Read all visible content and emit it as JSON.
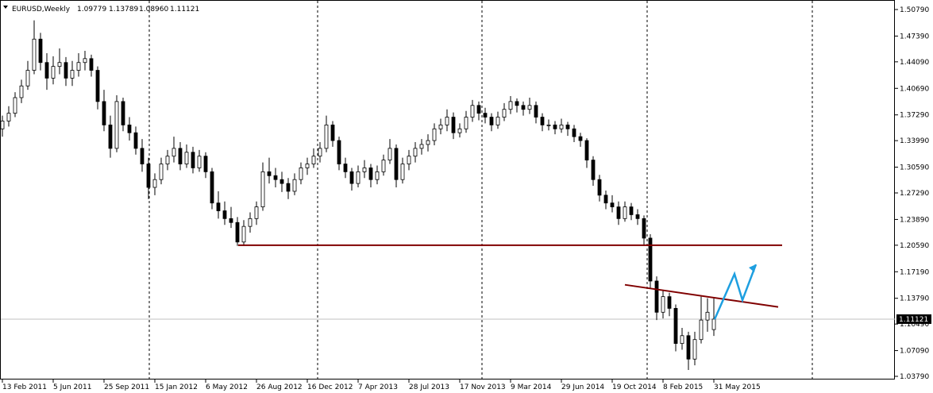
{
  "header": {
    "symbol": "EURUSD,Weekly",
    "ohlc": [
      "1.09779",
      "1.13789",
      "1.08960",
      "1.11121"
    ]
  },
  "chart_data": {
    "type": "candlestick",
    "categories": [
      "13 Feb 2011",
      null,
      null,
      null,
      null,
      null,
      null,
      null,
      "5 Jun 2011",
      null,
      null,
      null,
      null,
      null,
      null,
      null,
      "25 Sep 2011",
      null,
      null,
      null,
      null,
      null,
      null,
      null,
      "15 Jan 2012",
      null,
      null,
      null,
      null,
      null,
      null,
      null,
      "6 May 2012",
      null,
      null,
      null,
      null,
      null,
      null,
      null,
      "26 Aug 2012",
      null,
      null,
      null,
      null,
      null,
      null,
      null,
      "16 Dec 2012",
      null,
      null,
      null,
      null,
      null,
      null,
      null,
      "7 Apr 2013",
      null,
      null,
      null,
      null,
      null,
      null,
      null,
      "28 Jul 2013",
      null,
      null,
      null,
      null,
      null,
      null,
      null,
      "17 Nov 2013",
      null,
      null,
      null,
      null,
      null,
      null,
      null,
      "9 Mar 2014",
      null,
      null,
      null,
      null,
      null,
      null,
      null,
      "29 Jun 2014",
      null,
      null,
      null,
      null,
      null,
      null,
      null,
      "19 Oct 2014",
      null,
      null,
      null,
      null,
      null,
      null,
      null,
      "8 Feb 2015",
      null,
      null,
      null,
      null,
      null,
      null,
      null,
      "31 May 2015"
    ],
    "ohlc": [
      [
        1.355,
        1.372,
        1.345,
        1.365
      ],
      [
        1.365,
        1.384,
        1.358,
        1.375
      ],
      [
        1.375,
        1.402,
        1.37,
        1.395
      ],
      [
        1.395,
        1.418,
        1.388,
        1.41
      ],
      [
        1.41,
        1.442,
        1.405,
        1.43
      ],
      [
        1.43,
        1.494,
        1.425,
        1.47
      ],
      [
        1.47,
        1.478,
        1.43,
        1.44
      ],
      [
        1.44,
        1.452,
        1.405,
        1.42
      ],
      [
        1.42,
        1.448,
        1.412,
        1.435
      ],
      [
        1.435,
        1.458,
        1.425,
        1.44
      ],
      [
        1.44,
        1.447,
        1.41,
        1.42
      ],
      [
        1.42,
        1.442,
        1.41,
        1.43
      ],
      [
        1.43,
        1.452,
        1.422,
        1.44
      ],
      [
        1.44,
        1.455,
        1.43,
        1.445
      ],
      [
        1.445,
        1.45,
        1.422,
        1.43
      ],
      [
        1.43,
        1.435,
        1.38,
        1.39
      ],
      [
        1.39,
        1.405,
        1.352,
        1.36
      ],
      [
        1.36,
        1.372,
        1.318,
        1.33
      ],
      [
        1.33,
        1.398,
        1.325,
        1.39
      ],
      [
        1.39,
        1.395,
        1.352,
        1.36
      ],
      [
        1.36,
        1.37,
        1.34,
        1.35
      ],
      [
        1.35,
        1.358,
        1.322,
        1.33
      ],
      [
        1.33,
        1.342,
        1.3,
        1.31
      ],
      [
        1.31,
        1.318,
        1.265,
        1.28
      ],
      [
        1.28,
        1.298,
        1.27,
        1.29
      ],
      [
        1.29,
        1.318,
        1.284,
        1.31
      ],
      [
        1.31,
        1.328,
        1.302,
        1.32
      ],
      [
        1.32,
        1.345,
        1.312,
        1.33
      ],
      [
        1.33,
        1.338,
        1.302,
        1.31
      ],
      [
        1.31,
        1.335,
        1.305,
        1.325
      ],
      [
        1.325,
        1.332,
        1.298,
        1.305
      ],
      [
        1.305,
        1.328,
        1.3,
        1.32
      ],
      [
        1.32,
        1.325,
        1.292,
        1.3
      ],
      [
        1.3,
        1.305,
        1.252,
        1.26
      ],
      [
        1.26,
        1.275,
        1.24,
        1.25
      ],
      [
        1.25,
        1.262,
        1.232,
        1.24
      ],
      [
        1.24,
        1.255,
        1.228,
        1.235
      ],
      [
        1.235,
        1.242,
        1.205,
        1.21
      ],
      [
        1.21,
        1.238,
        1.205,
        1.23
      ],
      [
        1.23,
        1.248,
        1.222,
        1.24
      ],
      [
        1.24,
        1.262,
        1.232,
        1.255
      ],
      [
        1.255,
        1.312,
        1.25,
        1.3
      ],
      [
        1.3,
        1.318,
        1.285,
        1.295
      ],
      [
        1.295,
        1.305,
        1.28,
        1.29
      ],
      [
        1.29,
        1.3,
        1.274,
        1.285
      ],
      [
        1.285,
        1.292,
        1.265,
        1.275
      ],
      [
        1.275,
        1.298,
        1.27,
        1.29
      ],
      [
        1.29,
        1.312,
        1.284,
        1.305
      ],
      [
        1.305,
        1.318,
        1.296,
        1.31
      ],
      [
        1.31,
        1.33,
        1.305,
        1.32
      ],
      [
        1.32,
        1.338,
        1.312,
        1.33
      ],
      [
        1.33,
        1.372,
        1.325,
        1.36
      ],
      [
        1.36,
        1.365,
        1.332,
        1.34
      ],
      [
        1.34,
        1.345,
        1.302,
        1.31
      ],
      [
        1.31,
        1.318,
        1.292,
        1.3
      ],
      [
        1.3,
        1.305,
        1.276,
        1.285
      ],
      [
        1.285,
        1.308,
        1.28,
        1.3
      ],
      [
        1.3,
        1.315,
        1.292,
        1.305
      ],
      [
        1.305,
        1.31,
        1.28,
        1.29
      ],
      [
        1.29,
        1.308,
        1.284,
        1.3
      ],
      [
        1.3,
        1.322,
        1.295,
        1.315
      ],
      [
        1.315,
        1.342,
        1.31,
        1.33
      ],
      [
        1.33,
        1.335,
        1.28,
        1.29
      ],
      [
        1.29,
        1.318,
        1.285,
        1.31
      ],
      [
        1.31,
        1.328,
        1.302,
        1.32
      ],
      [
        1.32,
        1.338,
        1.312,
        1.33
      ],
      [
        1.33,
        1.342,
        1.322,
        1.335
      ],
      [
        1.335,
        1.348,
        1.326,
        1.34
      ],
      [
        1.34,
        1.362,
        1.334,
        1.355
      ],
      [
        1.355,
        1.368,
        1.348,
        1.36
      ],
      [
        1.36,
        1.38,
        1.352,
        1.37
      ],
      [
        1.37,
        1.376,
        1.342,
        1.35
      ],
      [
        1.35,
        1.362,
        1.344,
        1.355
      ],
      [
        1.355,
        1.378,
        1.35,
        1.37
      ],
      [
        1.37,
        1.392,
        1.364,
        1.385
      ],
      [
        1.385,
        1.39,
        1.366,
        1.375
      ],
      [
        1.375,
        1.382,
        1.362,
        1.37
      ],
      [
        1.37,
        1.375,
        1.352,
        1.36
      ],
      [
        1.36,
        1.377,
        1.355,
        1.37
      ],
      [
        1.37,
        1.388,
        1.365,
        1.38
      ],
      [
        1.38,
        1.397,
        1.374,
        1.39
      ],
      [
        1.39,
        1.394,
        1.376,
        1.385
      ],
      [
        1.385,
        1.39,
        1.372,
        1.38
      ],
      [
        1.38,
        1.395,
        1.374,
        1.385
      ],
      [
        1.385,
        1.39,
        1.362,
        1.37
      ],
      [
        1.37,
        1.375,
        1.352,
        1.36
      ],
      [
        1.36,
        1.367,
        1.353,
        1.36
      ],
      [
        1.36,
        1.365,
        1.348,
        1.355
      ],
      [
        1.355,
        1.368,
        1.35,
        1.36
      ],
      [
        1.36,
        1.364,
        1.346,
        1.355
      ],
      [
        1.355,
        1.36,
        1.338,
        1.345
      ],
      [
        1.345,
        1.35,
        1.332,
        1.34
      ],
      [
        1.34,
        1.343,
        1.305,
        1.315
      ],
      [
        1.315,
        1.32,
        1.282,
        1.29
      ],
      [
        1.29,
        1.296,
        1.262,
        1.27
      ],
      [
        1.27,
        1.276,
        1.252,
        1.26
      ],
      [
        1.26,
        1.27,
        1.248,
        1.255
      ],
      [
        1.255,
        1.262,
        1.232,
        1.24
      ],
      [
        1.24,
        1.262,
        1.236,
        1.255
      ],
      [
        1.255,
        1.26,
        1.238,
        1.245
      ],
      [
        1.245,
        1.252,
        1.232,
        1.24
      ],
      [
        1.24,
        1.244,
        1.205,
        1.215
      ],
      [
        1.215,
        1.22,
        1.15,
        1.16
      ],
      [
        1.16,
        1.166,
        1.11,
        1.12
      ],
      [
        1.12,
        1.148,
        1.112,
        1.14
      ],
      [
        1.14,
        1.145,
        1.115,
        1.125
      ],
      [
        1.125,
        1.13,
        1.07,
        1.08
      ],
      [
        1.08,
        1.1,
        1.072,
        1.09
      ],
      [
        1.09,
        1.095,
        1.046,
        1.06
      ],
      [
        1.06,
        1.095,
        1.052,
        1.085
      ],
      [
        1.085,
        1.14,
        1.08,
        1.11
      ],
      [
        1.11,
        1.138,
        1.095,
        1.12
      ],
      [
        1.09779,
        1.13789,
        1.0896,
        1.11121
      ]
    ],
    "ylim": [
      1.0379,
      1.5079
    ],
    "yticks": [
      {
        "value": 1.5079,
        "label": "1.50790"
      },
      {
        "value": 1.4739,
        "label": "1.47390"
      },
      {
        "value": 1.4409,
        "label": "1.44090"
      },
      {
        "value": 1.4069,
        "label": "1.40690"
      },
      {
        "value": 1.3729,
        "label": "1.37290"
      },
      {
        "value": 1.3399,
        "label": "1.33990"
      },
      {
        "value": 1.3059,
        "label": "1.30590"
      },
      {
        "value": 1.2729,
        "label": "1.27290"
      },
      {
        "value": 1.2389,
        "label": "1.23890"
      },
      {
        "value": 1.2059,
        "label": "1.20590"
      },
      {
        "value": 1.1719,
        "label": "1.17190"
      },
      {
        "value": 1.1379,
        "label": "1.13790"
      },
      {
        "value": 1.1049,
        "label": "1.10490"
      },
      {
        "value": 1.0709,
        "label": "1.07090"
      },
      {
        "value": 1.0379,
        "label": "1.03790"
      }
    ],
    "bid": {
      "value": 1.11121,
      "label": "1.11121"
    },
    "support_line": 1.2059,
    "support_color": "#800000",
    "trend_line": [
      1.1552,
      1.1268
    ],
    "trend_color": "#800000",
    "arrow": [
      1.111,
      1.169,
      1.1356,
      1.1813
    ],
    "arrow_color": "#1e9fe0"
  }
}
